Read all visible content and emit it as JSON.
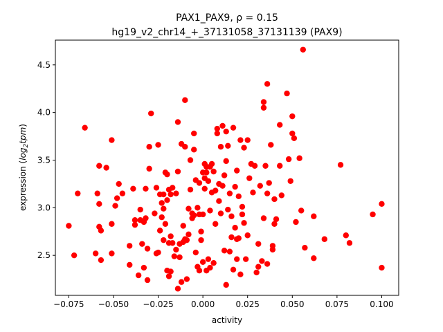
{
  "chart_data": {
    "type": "scatter",
    "title_line1": "PAX1_PAX9, ρ = 0.15",
    "title_line2": "hg19_v2_chr14_+_37131058_37131139 (PAX9)",
    "xlabel": "activity",
    "ylabel_prefix": "expression (",
    "ylabel_italic": "log",
    "ylabel_sub": "2",
    "ylabel_italic2": "tpm",
    "ylabel_suffix": ")",
    "xlim": [
      -0.0825,
      0.1095
    ],
    "ylim": [
      2.08,
      4.76
    ],
    "xticks": [
      -0.075,
      -0.05,
      -0.025,
      0.0,
      0.025,
      0.05,
      0.075,
      0.1
    ],
    "xtick_labels": [
      "−0.075",
      "−0.050",
      "−0.025",
      "0.000",
      "0.025",
      "0.050",
      "0.075",
      "0.100"
    ],
    "yticks": [
      2.5,
      3.0,
      3.5,
      4.0,
      4.5
    ],
    "ytick_labels": [
      "2.5",
      "3.0",
      "3.5",
      "4.0",
      "4.5"
    ],
    "marker_color": "#ff0000",
    "grid": false,
    "points": [
      [
        -0.075,
        2.81
      ],
      [
        -0.072,
        2.5
      ],
      [
        -0.07,
        3.15
      ],
      [
        -0.066,
        3.84
      ],
      [
        -0.06,
        2.52
      ],
      [
        -0.059,
        3.15
      ],
      [
        -0.058,
        2.8
      ],
      [
        -0.058,
        3.44
      ],
      [
        -0.058,
        3.04
      ],
      [
        -0.057,
        2.76
      ],
      [
        -0.057,
        2.45
      ],
      [
        -0.054,
        3.42
      ],
      [
        -0.051,
        3.71
      ],
      [
        -0.051,
        2.52
      ],
      [
        -0.051,
        2.83
      ],
      [
        -0.049,
        3.02
      ],
      [
        -0.048,
        3.1
      ],
      [
        -0.047,
        3.25
      ],
      [
        -0.045,
        3.15
      ],
      [
        -0.041,
        2.6
      ],
      [
        -0.041,
        2.4
      ],
      [
        -0.039,
        3.2
      ],
      [
        -0.038,
        2.82
      ],
      [
        -0.038,
        2.87
      ],
      [
        -0.036,
        2.29
      ],
      [
        -0.035,
        2.98
      ],
      [
        -0.035,
        2.87
      ],
      [
        -0.034,
        2.62
      ],
      [
        -0.033,
        2.85
      ],
      [
        -0.033,
        2.37
      ],
      [
        -0.032,
        3.2
      ],
      [
        -0.032,
        2.89
      ],
      [
        -0.031,
        2.24
      ],
      [
        -0.031,
        2.57
      ],
      [
        -0.03,
        3.64
      ],
      [
        -0.03,
        3.41
      ],
      [
        -0.029,
        3.99
      ],
      [
        -0.027,
        2.94
      ],
      [
        -0.026,
        3.21
      ],
      [
        -0.026,
        2.52
      ],
      [
        -0.025,
        3.66
      ],
      [
        -0.025,
        2.53
      ],
      [
        -0.024,
        3.14
      ],
      [
        -0.024,
        2.76
      ],
      [
        -0.023,
        3.05
      ],
      [
        -0.023,
        2.9
      ],
      [
        -0.022,
        3.14
      ],
      [
        -0.022,
        2.99
      ],
      [
        -0.022,
        2.66
      ],
      [
        -0.021,
        3.37
      ],
      [
        -0.021,
        2.83
      ],
      [
        -0.02,
        3.35
      ],
      [
        -0.02,
        3.08
      ],
      [
        -0.02,
        2.34
      ],
      [
        -0.019,
        3.19
      ],
      [
        -0.019,
        2.63
      ],
      [
        -0.019,
        2.28
      ],
      [
        -0.018,
        3.14
      ],
      [
        -0.018,
        2.33
      ],
      [
        -0.018,
        2.7
      ],
      [
        -0.017,
        3.21
      ],
      [
        -0.017,
        2.63
      ],
      [
        -0.016,
        2.49
      ],
      [
        -0.015,
        3.15
      ],
      [
        -0.015,
        2.56
      ],
      [
        -0.014,
        2.15
      ],
      [
        -0.014,
        3.9
      ],
      [
        -0.014,
        3.38
      ],
      [
        -0.013,
        2.48
      ],
      [
        -0.013,
        2.62
      ],
      [
        -0.012,
        3.67
      ],
      [
        -0.012,
        2.22
      ],
      [
        -0.011,
        2.81
      ],
      [
        -0.011,
        2.64
      ],
      [
        -0.01,
        3.64
      ],
      [
        -0.01,
        2.67
      ],
      [
        -0.01,
        4.13
      ],
      [
        -0.009,
        2.25
      ],
      [
        -0.009,
        2.66
      ],
      [
        -0.008,
        2.72
      ],
      [
        -0.008,
        2.99
      ],
      [
        -0.007,
        3.5
      ],
      [
        -0.007,
        3.19
      ],
      [
        -0.006,
        2.94
      ],
      [
        -0.006,
        2.89
      ],
      [
        -0.005,
        3.78
      ],
      [
        -0.005,
        3.61
      ],
      [
        -0.005,
        2.92
      ],
      [
        -0.004,
        2.53
      ],
      [
        -0.004,
        3.29
      ],
      [
        -0.003,
        3.0
      ],
      [
        -0.003,
        2.38
      ],
      [
        -0.002,
        2.93
      ],
      [
        -0.002,
        3.26
      ],
      [
        -0.002,
        2.34
      ],
      [
        -0.001,
        2.66
      ],
      [
        -0.001,
        2.75
      ],
      [
        0.0,
        2.93
      ],
      [
        0.0,
        3.37
      ],
      [
        0.0,
        2.43
      ],
      [
        0.001,
        3.46
      ],
      [
        0.001,
        3.31
      ],
      [
        0.001,
        3.2
      ],
      [
        0.002,
        3.37
      ],
      [
        0.002,
        2.34
      ],
      [
        0.002,
        3.43
      ],
      [
        0.003,
        3.28
      ],
      [
        0.003,
        2.46
      ],
      [
        0.004,
        3.43
      ],
      [
        0.004,
        2.97
      ],
      [
        0.004,
        2.37
      ],
      [
        0.005,
        3.16
      ],
      [
        0.005,
        3.46
      ],
      [
        0.006,
        3.38
      ],
      [
        0.006,
        2.42
      ],
      [
        0.007,
        3.18
      ],
      [
        0.007,
        2.83
      ],
      [
        0.008,
        3.78
      ],
      [
        0.008,
        3.83
      ],
      [
        0.009,
        3.25
      ],
      [
        0.009,
        3.07
      ],
      [
        0.01,
        3.64
      ],
      [
        0.01,
        2.94
      ],
      [
        0.011,
        3.23
      ],
      [
        0.011,
        3.86
      ],
      [
        0.012,
        3.34
      ],
      [
        0.012,
        2.55
      ],
      [
        0.013,
        3.49
      ],
      [
        0.013,
        3.8
      ],
      [
        0.013,
        2.19
      ],
      [
        0.014,
        2.98
      ],
      [
        0.014,
        3.65
      ],
      [
        0.015,
        3.15
      ],
      [
        0.015,
        2.54
      ],
      [
        0.016,
        2.91
      ],
      [
        0.016,
        2.69
      ],
      [
        0.017,
        3.84
      ],
      [
        0.017,
        2.35
      ],
      [
        0.018,
        3.22
      ],
      [
        0.018,
        2.79
      ],
      [
        0.019,
        2.67
      ],
      [
        0.019,
        3.39
      ],
      [
        0.019,
        2.46
      ],
      [
        0.02,
        3.12
      ],
      [
        0.02,
        2.68
      ],
      [
        0.021,
        3.71
      ],
      [
        0.021,
        2.3
      ],
      [
        0.022,
        3.01
      ],
      [
        0.022,
        2.93
      ],
      [
        0.023,
        3.63
      ],
      [
        0.023,
        2.84
      ],
      [
        0.024,
        2.46
      ],
      [
        0.025,
        3.71
      ],
      [
        0.025,
        2.71
      ],
      [
        0.026,
        3.31
      ],
      [
        0.027,
        3.46
      ],
      [
        0.028,
        3.16
      ],
      [
        0.029,
        3.44
      ],
      [
        0.03,
        2.32
      ],
      [
        0.031,
        2.62
      ],
      [
        0.031,
        2.38
      ],
      [
        0.032,
        3.23
      ],
      [
        0.033,
        2.44
      ],
      [
        0.034,
        2.89
      ],
      [
        0.034,
        4.05
      ],
      [
        0.034,
        4.11
      ],
      [
        0.035,
        3.44
      ],
      [
        0.036,
        3.15
      ],
      [
        0.036,
        4.3
      ],
      [
        0.036,
        2.41
      ],
      [
        0.037,
        3.26
      ],
      [
        0.038,
        3.66
      ],
      [
        0.039,
        2.6
      ],
      [
        0.039,
        2.56
      ],
      [
        0.04,
        2.83
      ],
      [
        0.04,
        3.09
      ],
      [
        0.041,
        2.88
      ],
      [
        0.043,
        3.87
      ],
      [
        0.043,
        3.44
      ],
      [
        0.044,
        3.13
      ],
      [
        0.047,
        4.2
      ],
      [
        0.048,
        3.51
      ],
      [
        0.049,
        3.28
      ],
      [
        0.05,
        3.78
      ],
      [
        0.05,
        3.96
      ],
      [
        0.051,
        3.73
      ],
      [
        0.052,
        2.85
      ],
      [
        0.054,
        3.52
      ],
      [
        0.055,
        2.97
      ],
      [
        0.056,
        4.66
      ],
      [
        0.057,
        2.58
      ],
      [
        0.062,
        2.47
      ],
      [
        0.062,
        2.91
      ],
      [
        0.068,
        2.67
      ],
      [
        0.077,
        3.45
      ],
      [
        0.08,
        2.71
      ],
      [
        0.082,
        2.63
      ],
      [
        0.095,
        2.93
      ],
      [
        0.1,
        2.37
      ],
      [
        0.1,
        3.04
      ]
    ]
  }
}
